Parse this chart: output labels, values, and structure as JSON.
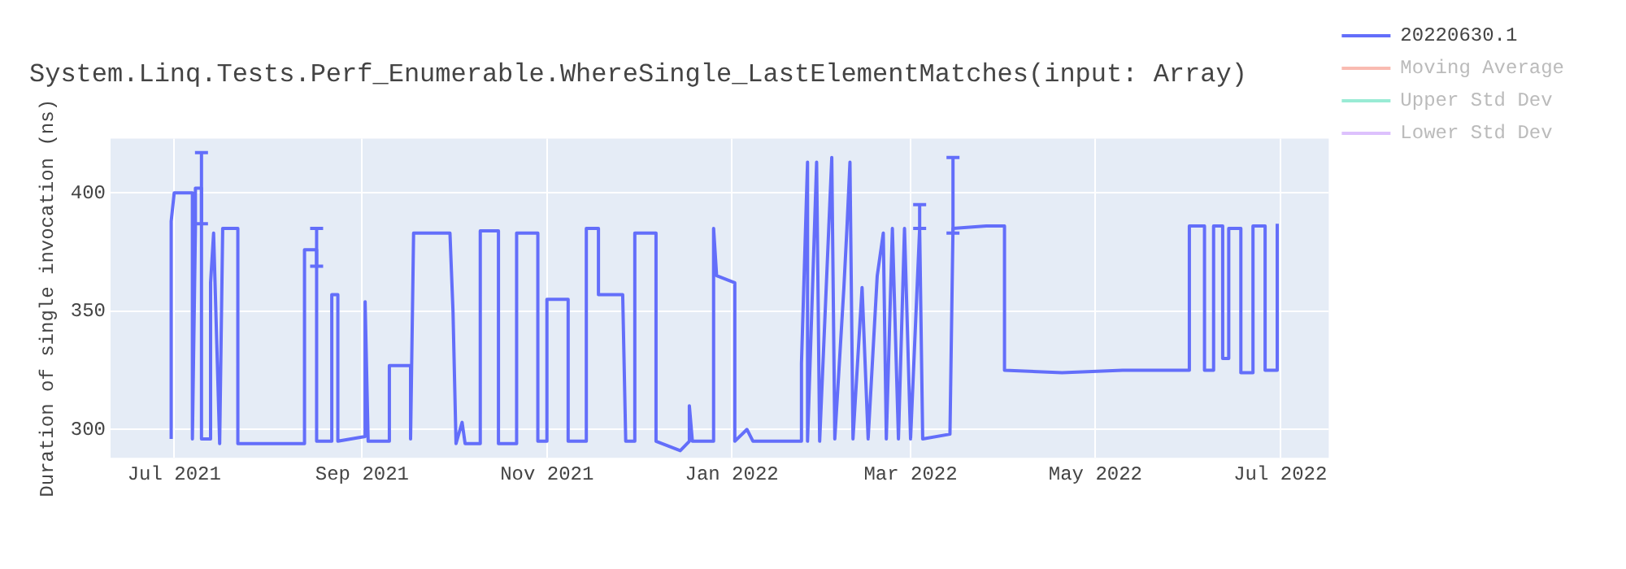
{
  "chart_data": {
    "type": "line",
    "title": "System.Linq.Tests.Perf_Enumerable.WhereSingle_LastElementMatches(input: Array)",
    "ylabel": "Duration of single invocation (ns)",
    "x": [
      "2021-06-30",
      "2021-06-30",
      "2021-07-01",
      "2021-07-07",
      "2021-07-07",
      "2021-07-08",
      "2021-07-08",
      "2021-07-10",
      "2021-07-10",
      "2021-07-13",
      "2021-07-13",
      "2021-07-14",
      "2021-07-16",
      "2021-07-17",
      "2021-07-22",
      "2021-07-22",
      "2021-08-13",
      "2021-08-13",
      "2021-08-17",
      "2021-08-17",
      "2021-08-22",
      "2021-08-22",
      "2021-08-24",
      "2021-08-24",
      "2021-09-02",
      "2021-09-02",
      "2021-09-03",
      "2021-09-10",
      "2021-09-10",
      "2021-09-17",
      "2021-09-17",
      "2021-09-18",
      "2021-09-30",
      "2021-10-01",
      "2021-10-02",
      "2021-10-04",
      "2021-10-05",
      "2021-10-10",
      "2021-10-10",
      "2021-10-16",
      "2021-10-16",
      "2021-10-22",
      "2021-10-22",
      "2021-10-29",
      "2021-10-29",
      "2021-11-01",
      "2021-11-01",
      "2021-11-08",
      "2021-11-08",
      "2021-11-14",
      "2021-11-14",
      "2021-11-18",
      "2021-11-18",
      "2021-11-26",
      "2021-11-27",
      "2021-11-30",
      "2021-11-30",
      "2021-12-07",
      "2021-12-07",
      "2021-12-15",
      "2021-12-18",
      "2021-12-18",
      "2021-12-19",
      "2021-12-26",
      "2021-12-26",
      "2021-12-27",
      "2022-01-02",
      "2022-01-02",
      "2022-01-06",
      "2022-01-08",
      "2022-01-24",
      "2022-01-24",
      "2022-01-26",
      "2022-01-26",
      "2022-01-29",
      "2022-01-30",
      "2022-02-03",
      "2022-02-04",
      "2022-02-07",
      "2022-02-08",
      "2022-02-09",
      "2022-02-10",
      "2022-02-13",
      "2022-02-15",
      "2022-02-18",
      "2022-02-20",
      "2022-02-21",
      "2022-02-23",
      "2022-02-25",
      "2022-02-27",
      "2022-03-01",
      "2022-03-04",
      "2022-03-05",
      "2022-03-14",
      "2022-03-15",
      "2022-03-26",
      "2022-04-01",
      "2022-04-01",
      "2022-04-20",
      "2022-05-10",
      "2022-06-01",
      "2022-06-01",
      "2022-06-06",
      "2022-06-06",
      "2022-06-09",
      "2022-06-09",
      "2022-06-12",
      "2022-06-12",
      "2022-06-14",
      "2022-06-14",
      "2022-06-18",
      "2022-06-18",
      "2022-06-22",
      "2022-06-22",
      "2022-06-26",
      "2022-06-26",
      "2022-06-30",
      "2022-06-30"
    ],
    "series": [
      {
        "name": "20220630.1",
        "color": "#636efa",
        "values": [
          296,
          388,
          400,
          400,
          296,
          385,
          402,
          402,
          296,
          296,
          362,
          383,
          294,
          385,
          385,
          294,
          294,
          376,
          376,
          295,
          295,
          357,
          357,
          295,
          297,
          354,
          295,
          295,
          327,
          327,
          296,
          383,
          383,
          350,
          294,
          303,
          294,
          294,
          384,
          384,
          294,
          294,
          383,
          383,
          295,
          295,
          355,
          355,
          295,
          295,
          385,
          385,
          357,
          357,
          295,
          295,
          383,
          383,
          295,
          291,
          295,
          310,
          295,
          295,
          385,
          365,
          362,
          295,
          300,
          295,
          295,
          328,
          413,
          295,
          413,
          295,
          415,
          296,
          360,
          385,
          413,
          296,
          360,
          296,
          365,
          383,
          296,
          385,
          296,
          385,
          296,
          385,
          296,
          298,
          385,
          386,
          386,
          325,
          324,
          325,
          325,
          386,
          386,
          325,
          325,
          386,
          386,
          330,
          330,
          385,
          385,
          324,
          324,
          386,
          386,
          325,
          325,
          387
        ],
        "errors": [
          null,
          null,
          null,
          null,
          null,
          null,
          null,
          [
            387,
            417
          ],
          null,
          null,
          null,
          null,
          null,
          null,
          null,
          null,
          null,
          null,
          [
            369,
            385
          ],
          null,
          null,
          null,
          null,
          null,
          null,
          null,
          null,
          null,
          null,
          null,
          null,
          null,
          null,
          null,
          null,
          null,
          null,
          null,
          null,
          null,
          null,
          null,
          null,
          null,
          null,
          null,
          null,
          null,
          null,
          null,
          null,
          null,
          null,
          null,
          null,
          null,
          null,
          null,
          null,
          null,
          null,
          null,
          null,
          null,
          null,
          null,
          null,
          null,
          null,
          null,
          null,
          null,
          null,
          null,
          null,
          null,
          null,
          null,
          null,
          null,
          null,
          null,
          null,
          null,
          null,
          null,
          null,
          null,
          null,
          null,
          null,
          [
            385,
            395
          ],
          null,
          null,
          [
            383,
            415
          ],
          null,
          null,
          null,
          null,
          null,
          null,
          null,
          null,
          null,
          null,
          null,
          null,
          null,
          null,
          null,
          null,
          null,
          null,
          null,
          null,
          null,
          null,
          null
        ]
      },
      {
        "name": "Moving Average",
        "color": "#ef553b",
        "values": [
          null,
          null,
          null,
          null,
          null,
          null,
          null,
          null,
          null,
          null,
          null,
          null,
          null,
          null,
          null,
          null,
          null,
          null,
          null,
          null,
          null,
          null,
          null,
          null,
          null,
          null,
          null,
          null,
          null,
          null,
          null,
          null,
          null,
          null,
          null,
          null,
          null,
          null,
          null,
          null,
          null,
          null,
          null,
          null,
          null,
          null,
          null,
          null,
          null,
          null,
          null,
          null,
          null,
          null,
          null,
          null,
          null,
          null,
          null,
          null,
          null,
          null,
          null,
          null,
          null,
          null,
          null,
          null,
          null,
          null,
          null,
          null,
          null,
          null,
          null,
          null,
          null,
          null,
          null,
          null,
          null,
          null,
          null,
          null,
          null,
          null,
          null,
          null,
          null,
          null,
          null,
          null,
          null,
          null,
          null,
          null,
          null,
          null,
          null,
          null,
          null,
          null,
          null,
          null,
          null,
          null,
          null,
          null,
          null,
          null,
          null,
          null,
          null,
          null,
          null,
          null,
          null,
          null
        ]
      },
      {
        "name": "Upper Std Dev",
        "color": "#00cc96",
        "values": [
          null,
          null,
          null,
          null,
          null,
          null,
          null,
          null,
          null,
          null,
          null,
          null,
          null,
          null,
          null,
          null,
          null,
          null,
          null,
          null,
          null,
          null,
          null,
          null,
          null,
          null,
          null,
          null,
          null,
          null,
          null,
          null,
          null,
          null,
          null,
          null,
          null,
          null,
          null,
          null,
          null,
          null,
          null,
          null,
          null,
          null,
          null,
          null,
          null,
          null,
          null,
          null,
          null,
          null,
          null,
          null,
          null,
          null,
          null,
          null,
          null,
          null,
          null,
          null,
          null,
          null,
          null,
          null,
          null,
          null,
          null,
          null,
          null,
          null,
          null,
          null,
          null,
          null,
          null,
          null,
          null,
          null,
          null,
          null,
          null,
          null,
          null,
          null,
          null,
          null,
          null,
          null,
          null,
          null,
          null,
          null,
          null,
          null,
          null,
          null,
          null,
          null,
          null,
          null,
          null,
          null,
          null,
          null,
          null,
          null,
          null,
          null,
          null,
          null,
          null,
          null,
          null,
          null
        ]
      },
      {
        "name": "Lower Std Dev",
        "color": "#ab63fa",
        "values": [
          null,
          null,
          null,
          null,
          null,
          null,
          null,
          null,
          null,
          null,
          null,
          null,
          null,
          null,
          null,
          null,
          null,
          null,
          null,
          null,
          null,
          null,
          null,
          null,
          null,
          null,
          null,
          null,
          null,
          null,
          null,
          null,
          null,
          null,
          null,
          null,
          null,
          null,
          null,
          null,
          null,
          null,
          null,
          null,
          null,
          null,
          null,
          null,
          null,
          null,
          null,
          null,
          null,
          null,
          null,
          null,
          null,
          null,
          null,
          null,
          null,
          null,
          null,
          null,
          null,
          null,
          null,
          null,
          null,
          null,
          null,
          null,
          null,
          null,
          null,
          null,
          null,
          null,
          null,
          null,
          null,
          null,
          null,
          null,
          null,
          null,
          null,
          null,
          null,
          null,
          null,
          null,
          null,
          null,
          null,
          null,
          null,
          null,
          null,
          null,
          null,
          null,
          null,
          null,
          null,
          null,
          null,
          null,
          null,
          null,
          null,
          null,
          null,
          null,
          null,
          null,
          null,
          null
        ]
      }
    ],
    "xlim": [
      "2021-06-10",
      "2022-07-17"
    ],
    "xticks": [
      {
        "value": "2021-07-01",
        "label": "Jul 2021"
      },
      {
        "value": "2021-09-01",
        "label": "Sep 2021"
      },
      {
        "value": "2021-11-01",
        "label": "Nov 2021"
      },
      {
        "value": "2022-01-01",
        "label": "Jan 2022"
      },
      {
        "value": "2022-03-01",
        "label": "Mar 2022"
      },
      {
        "value": "2022-05-01",
        "label": "May 2022"
      },
      {
        "value": "2022-07-01",
        "label": "Jul 2022"
      }
    ],
    "ylim": [
      288,
      423
    ],
    "yticks": [
      300,
      350,
      400
    ],
    "grid": true,
    "legend": "top right"
  }
}
